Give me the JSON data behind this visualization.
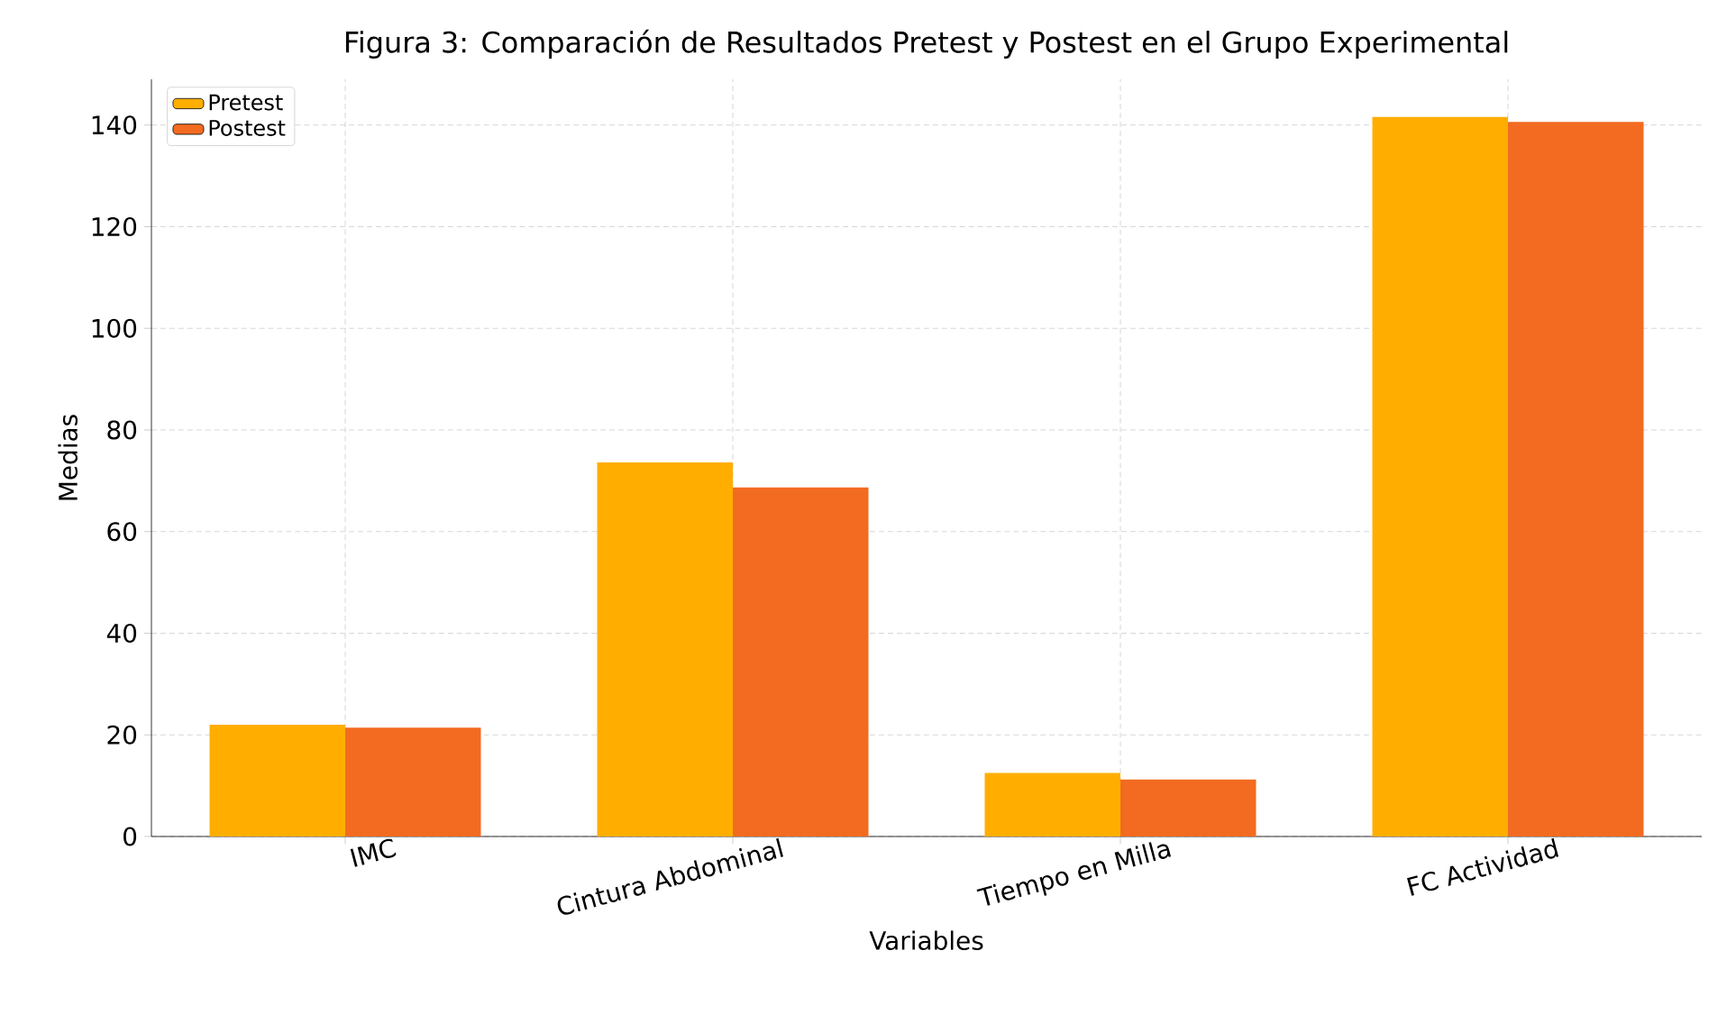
{
  "chart_data": {
    "type": "bar",
    "title": "Figura 3: Comparación de Resultados Pretest y Postest en el Grupo Experimental",
    "xlabel": "Variables",
    "ylabel": "Medias",
    "categories": [
      "IMC",
      "Cintura Abdominal",
      "Tiempo en Milla",
      "FC Actividad"
    ],
    "series": [
      {
        "name": "Pretest",
        "color": "#ffae00",
        "values": [
          22.0,
          73.6,
          12.5,
          141.6
        ]
      },
      {
        "name": "Postest",
        "color": "#f26b21",
        "values": [
          21.4,
          68.7,
          11.2,
          140.6
        ]
      }
    ],
    "ylim": [
      0,
      149
    ],
    "yticks": [
      0,
      20,
      40,
      60,
      80,
      100,
      120,
      140
    ],
    "grid": true,
    "legend": "top left"
  }
}
